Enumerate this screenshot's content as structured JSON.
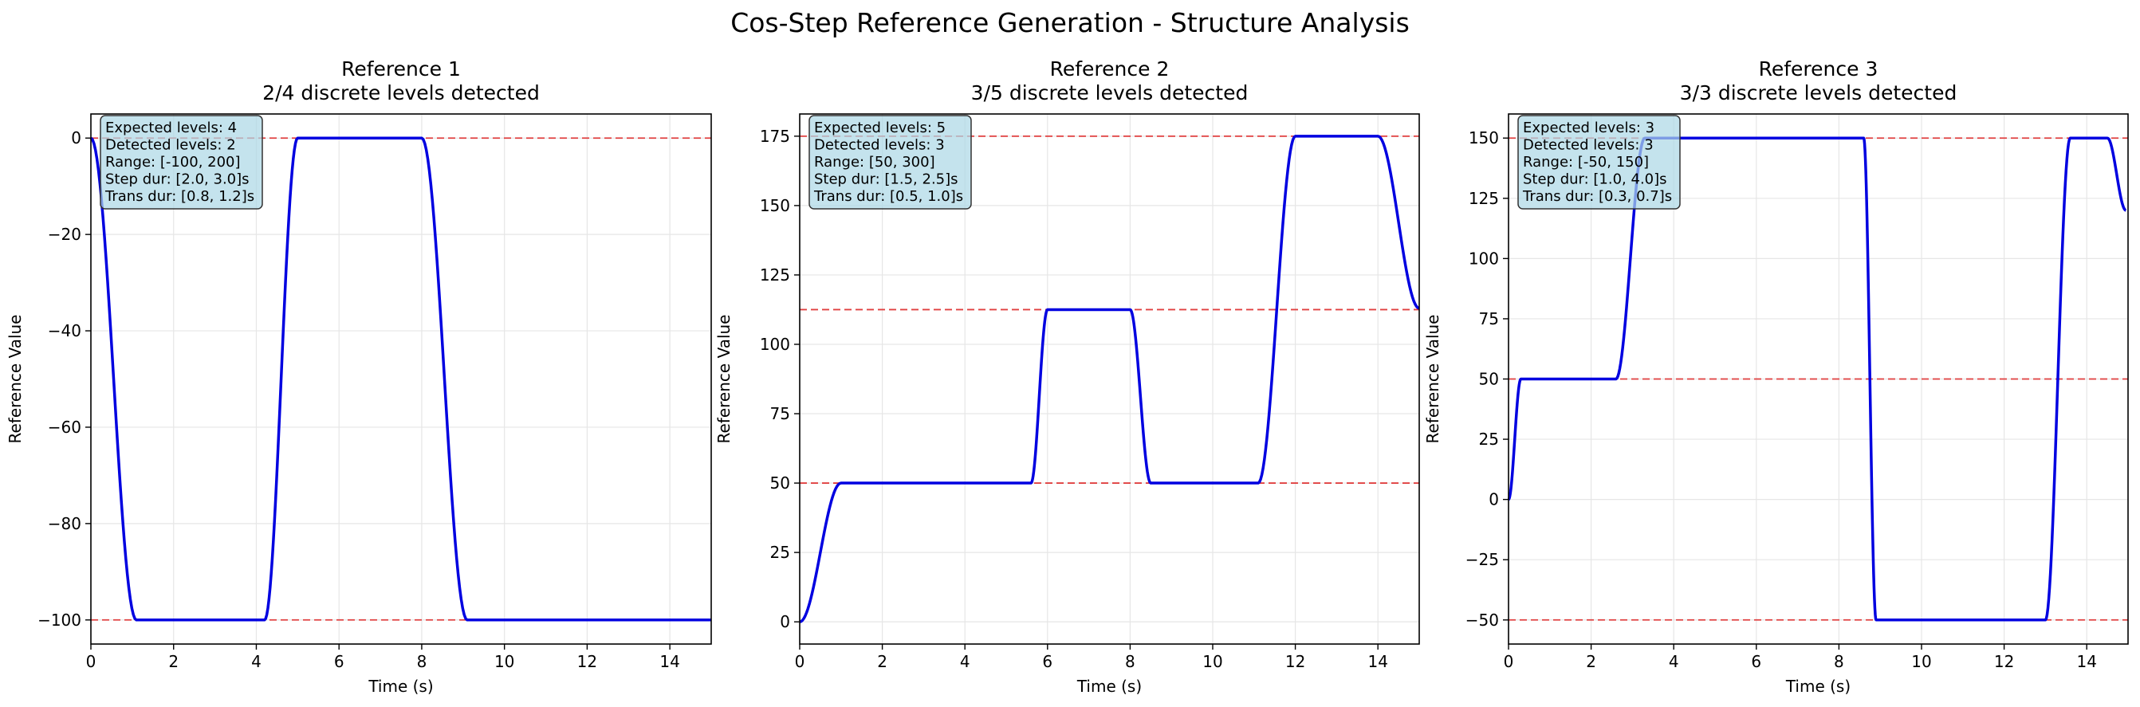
{
  "figure": {
    "title": "Cos-Step Reference Generation - Structure Analysis"
  },
  "colors": {
    "line": "#0000e0",
    "level_line": "#e04040",
    "info_box_fill": "#add8e6",
    "grid": "#e6e6e6"
  },
  "chart_data": [
    {
      "type": "line",
      "title": "Reference 1",
      "subtitle": "2/4 discrete levels detected",
      "xlabel": "Time (s)",
      "ylabel": "Reference Value",
      "xlim": [
        0,
        15
      ],
      "ylim": [
        -105,
        5
      ],
      "xticks": [
        0,
        2,
        4,
        6,
        8,
        10,
        12,
        14
      ],
      "yticks": [
        0,
        -20,
        -40,
        -60,
        -80,
        -100
      ],
      "ytick_labels": [
        "0",
        "−20",
        "−40",
        "−60",
        "−80",
        "−100"
      ],
      "grid": true,
      "level_lines": [
        0,
        -100
      ],
      "info_box": [
        "Expected levels: 4",
        "Detected levels: 2",
        "Range: [-100, 200]",
        "Step dur: [2.0, 3.0]s",
        "Trans dur: [0.8, 1.2]s"
      ],
      "series": [
        {
          "points": [
            [
              0,
              0
            ],
            [
              1.1,
              -100
            ],
            [
              4.2,
              -100
            ],
            [
              5.0,
              0
            ],
            [
              8.0,
              0
            ],
            [
              9.1,
              -100
            ],
            [
              15,
              -100
            ]
          ]
        }
      ]
    },
    {
      "type": "line",
      "title": "Reference 2",
      "subtitle": "3/5 discrete levels detected",
      "xlabel": "Time (s)",
      "ylabel": "Reference Value",
      "xlim": [
        0,
        15
      ],
      "ylim": [
        -8,
        183
      ],
      "xticks": [
        0,
        2,
        4,
        6,
        8,
        10,
        12,
        14
      ],
      "yticks": [
        0,
        25,
        50,
        75,
        100,
        125,
        150,
        175
      ],
      "ytick_labels": [
        "0",
        "25",
        "50",
        "75",
        "100",
        "125",
        "150",
        "175"
      ],
      "grid": true,
      "level_lines": [
        50,
        112.5,
        175
      ],
      "info_box": [
        "Expected levels: 5",
        "Detected levels: 3",
        "Range: [50, 300]",
        "Step dur: [1.5, 2.5]s",
        "Trans dur: [0.5, 1.0]s"
      ],
      "series": [
        {
          "points": [
            [
              0,
              0
            ],
            [
              1.0,
              50
            ],
            [
              5.6,
              50
            ],
            [
              6.0,
              112.5
            ],
            [
              8.0,
              112.5
            ],
            [
              8.5,
              50
            ],
            [
              11.1,
              50
            ],
            [
              12.0,
              175
            ],
            [
              14.0,
              175
            ],
            [
              15.0,
              113
            ]
          ]
        }
      ]
    },
    {
      "type": "line",
      "title": "Reference 3",
      "subtitle": "3/3 discrete levels detected",
      "xlabel": "Time (s)",
      "ylabel": "Reference Value",
      "xlim": [
        0,
        15
      ],
      "ylim": [
        -60,
        160
      ],
      "xticks": [
        0,
        2,
        4,
        6,
        8,
        10,
        12,
        14
      ],
      "yticks": [
        -50,
        -25,
        0,
        25,
        50,
        75,
        100,
        125,
        150
      ],
      "ytick_labels": [
        "−50",
        "−25",
        "0",
        "25",
        "50",
        "75",
        "100",
        "125",
        "150"
      ],
      "grid": true,
      "level_lines": [
        -50,
        50,
        150
      ],
      "info_box": [
        "Expected levels: 3",
        "Detected levels: 3",
        "Range: [-50, 150]",
        "Step dur: [1.0, 4.0]s",
        "Trans dur: [0.3, 0.7]s"
      ],
      "series": [
        {
          "points": [
            [
              0,
              0
            ],
            [
              0.3,
              50
            ],
            [
              2.6,
              50
            ],
            [
              3.3,
              150
            ],
            [
              8.6,
              150
            ],
            [
              8.9,
              -50
            ],
            [
              13.0,
              -50
            ],
            [
              13.6,
              150
            ],
            [
              14.5,
              150
            ],
            [
              14.95,
              120
            ]
          ]
        }
      ]
    }
  ]
}
